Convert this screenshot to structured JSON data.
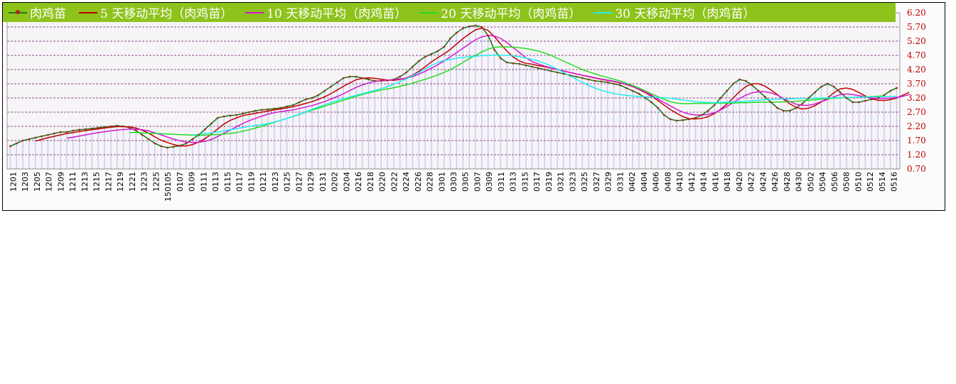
{
  "legend": [
    {
      "label": "肉鸡苗",
      "color": "#1a7a1a",
      "marker": "#b22222"
    },
    {
      "label": "5 天移动平均（肉鸡苗）",
      "color": "#c00000"
    },
    {
      "label": "10 天移动平均（肉鸡苗）",
      "color": "#d21ad2"
    },
    {
      "label": "20 天移动平均（肉鸡苗）",
      "color": "#22dd22"
    },
    {
      "label": "30 天移动平均（肉鸡苗）",
      "color": "#22eeee"
    }
  ],
  "chart_data": {
    "type": "line",
    "ylim": [
      0.7,
      6.2
    ],
    "y_ticks": [
      "6.20",
      "5.70",
      "5.20",
      "4.70",
      "4.20",
      "3.70",
      "3.20",
      "2.70",
      "2.20",
      "1.70",
      "1.20",
      "0.70"
    ],
    "x_tick_labels": [
      "1201",
      "1203",
      "1205",
      "1207",
      "1209",
      "1211",
      "1213",
      "1215",
      "1217",
      "1219",
      "1221",
      "1223",
      "1225",
      "150105",
      "0107",
      "0109",
      "0111",
      "0113",
      "0115",
      "0117",
      "0119",
      "0121",
      "0123",
      "0125",
      "0127",
      "0129",
      "0131",
      "0202",
      "0204",
      "0216",
      "0218",
      "0220",
      "0222",
      "0224",
      "0226",
      "0228",
      "0301",
      "0303",
      "0305",
      "0307",
      "0309",
      "0311",
      "0313",
      "0315",
      "0317",
      "0319",
      "0321",
      "0323",
      "0325",
      "0327",
      "0329",
      "0331",
      "0402",
      "0404",
      "0406",
      "0408",
      "0410",
      "0412",
      "0414",
      "0416",
      "0418",
      "0420",
      "0422",
      "0424",
      "0426",
      "0428",
      "0430",
      "0502",
      "0504",
      "0506",
      "0508",
      "0510",
      "0512",
      "0514",
      "0516"
    ],
    "series": [
      {
        "name": "肉鸡苗",
        "color": "#1a7a1a",
        "values": [
          1.5,
          1.6,
          1.7,
          1.75,
          1.8,
          1.85,
          1.9,
          1.95,
          2.0,
          2.0,
          2.05,
          2.08,
          2.1,
          2.12,
          2.15,
          2.18,
          2.2,
          2.22,
          2.2,
          2.15,
          2.05,
          1.9,
          1.75,
          1.6,
          1.5,
          1.45,
          1.48,
          1.52,
          1.6,
          1.75,
          1.9,
          2.1,
          2.3,
          2.5,
          2.55,
          2.58,
          2.6,
          2.65,
          2.7,
          2.75,
          2.78,
          2.8,
          2.82,
          2.85,
          2.9,
          2.95,
          3.05,
          3.15,
          3.2,
          3.3,
          3.45,
          3.6,
          3.75,
          3.9,
          3.95,
          3.95,
          3.9,
          3.85,
          3.8,
          3.8,
          3.82,
          3.85,
          3.95,
          4.1,
          4.3,
          4.5,
          4.65,
          4.75,
          4.85,
          5.0,
          5.3,
          5.5,
          5.65,
          5.72,
          5.75,
          5.7,
          5.4,
          4.9,
          4.6,
          4.45,
          4.42,
          4.4,
          4.35,
          4.3,
          4.25,
          4.2,
          4.15,
          4.1,
          4.05,
          4.0,
          3.95,
          3.9,
          3.85,
          3.8,
          3.78,
          3.75,
          3.7,
          3.65,
          3.55,
          3.45,
          3.35,
          3.2,
          3.05,
          2.85,
          2.6,
          2.45,
          2.4,
          2.42,
          2.45,
          2.5,
          2.6,
          2.75,
          2.95,
          3.2,
          3.45,
          3.7,
          3.85,
          3.8,
          3.65,
          3.45,
          3.25,
          3.05,
          2.85,
          2.75,
          2.75,
          2.85,
          3.0,
          3.2,
          3.4,
          3.6,
          3.7,
          3.6,
          3.4,
          3.2,
          3.05,
          3.05,
          3.1,
          3.15,
          3.2,
          3.3,
          3.45,
          3.55
        ]
      },
      {
        "name": "5 天移动平均（肉鸡苗）",
        "color": "#c00000",
        "values": [
          null,
          null,
          null,
          null,
          1.68,
          1.74,
          1.8,
          1.85,
          1.9,
          1.95,
          1.98,
          2.02,
          2.05,
          2.08,
          2.11,
          2.14,
          2.17,
          2.19,
          2.19,
          2.18,
          2.14,
          2.06,
          1.96,
          1.83,
          1.71,
          1.63,
          1.56,
          1.51,
          1.51,
          1.56,
          1.65,
          1.77,
          1.93,
          2.11,
          2.28,
          2.41,
          2.5,
          2.58,
          2.62,
          2.66,
          2.7,
          2.74,
          2.78,
          2.81,
          2.85,
          2.89,
          2.95,
          3.01,
          3.07,
          3.15,
          3.24,
          3.35,
          3.48,
          3.61,
          3.73,
          3.84,
          3.89,
          3.91,
          3.89,
          3.86,
          3.83,
          3.82,
          3.85,
          3.9,
          4.0,
          4.14,
          4.3,
          4.47,
          4.62,
          4.75,
          4.91,
          5.1,
          5.29,
          5.45,
          5.6,
          5.66,
          5.58,
          5.36,
          5.1,
          4.85,
          4.64,
          4.5,
          4.42,
          4.39,
          4.34,
          4.3,
          4.25,
          4.2,
          4.15,
          4.1,
          4.05,
          4.0,
          3.95,
          3.9,
          3.86,
          3.82,
          3.78,
          3.73,
          3.67,
          3.6,
          3.5,
          3.39,
          3.26,
          3.11,
          2.95,
          2.79,
          2.66,
          2.54,
          2.47,
          2.46,
          2.48,
          2.54,
          2.65,
          2.8,
          2.99,
          3.2,
          3.42,
          3.6,
          3.7,
          3.7,
          3.62,
          3.48,
          3.32,
          3.15,
          2.99,
          2.87,
          2.81,
          2.84,
          2.93,
          3.06,
          3.2,
          3.38,
          3.52,
          3.55,
          3.5,
          3.39,
          3.27,
          3.17,
          3.12,
          3.11,
          3.14,
          3.2,
          3.3,
          3.4
        ]
      },
      {
        "name": "10 天移动平均（肉鸡苗）",
        "color": "#d21ad2",
        "values": [
          null,
          null,
          null,
          null,
          null,
          null,
          null,
          null,
          null,
          1.78,
          1.82,
          1.86,
          1.9,
          1.94,
          1.98,
          2.01,
          2.04,
          2.07,
          2.09,
          2.1,
          2.1,
          2.08,
          2.04,
          1.97,
          1.9,
          1.82,
          1.75,
          1.69,
          1.65,
          1.63,
          1.64,
          1.67,
          1.74,
          1.84,
          1.96,
          2.07,
          2.19,
          2.3,
          2.4,
          2.48,
          2.56,
          2.63,
          2.68,
          2.72,
          2.75,
          2.78,
          2.83,
          2.88,
          2.93,
          3.0,
          3.07,
          3.16,
          3.25,
          3.35,
          3.46,
          3.57,
          3.66,
          3.73,
          3.78,
          3.81,
          3.83,
          3.84,
          3.87,
          3.9,
          3.95,
          4.04,
          4.14,
          4.25,
          4.37,
          4.5,
          4.65,
          4.8,
          4.95,
          5.1,
          5.25,
          5.35,
          5.4,
          5.38,
          5.3,
          5.15,
          4.97,
          4.8,
          4.62,
          4.48,
          4.4,
          4.32,
          4.26,
          4.2,
          4.15,
          4.1,
          4.05,
          4.0,
          3.96,
          3.91,
          3.87,
          3.83,
          3.79,
          3.74,
          3.68,
          3.61,
          3.52,
          3.41,
          3.3,
          3.17,
          3.04,
          2.92,
          2.8,
          2.7,
          2.63,
          2.6,
          2.6,
          2.62,
          2.68,
          2.78,
          2.9,
          3.04,
          3.18,
          3.3,
          3.38,
          3.42,
          3.42,
          3.38,
          3.3,
          3.18,
          3.07,
          2.98,
          2.94,
          2.94,
          2.99,
          3.07,
          3.15,
          3.24,
          3.32,
          3.34,
          3.32,
          3.28,
          3.24,
          3.2,
          3.18,
          3.18,
          3.19,
          3.22,
          3.26,
          3.32
        ]
      },
      {
        "name": "20 天移动平均（肉鸡苗）",
        "color": "#22dd22",
        "values": [
          null,
          null,
          null,
          null,
          null,
          null,
          null,
          null,
          null,
          null,
          null,
          null,
          null,
          null,
          null,
          null,
          null,
          null,
          null,
          1.98,
          1.98,
          1.97,
          1.96,
          1.95,
          1.94,
          1.93,
          1.92,
          1.91,
          1.9,
          1.89,
          1.88,
          1.89,
          1.9,
          1.91,
          1.93,
          1.95,
          1.98,
          2.03,
          2.08,
          2.14,
          2.2,
          2.27,
          2.34,
          2.41,
          2.48,
          2.55,
          2.62,
          2.7,
          2.77,
          2.84,
          2.91,
          2.98,
          3.05,
          3.12,
          3.19,
          3.26,
          3.32,
          3.38,
          3.43,
          3.48,
          3.52,
          3.56,
          3.61,
          3.66,
          3.72,
          3.79,
          3.86,
          3.93,
          4.01,
          4.1,
          4.2,
          4.32,
          4.45,
          4.58,
          4.7,
          4.82,
          4.92,
          4.98,
          5.0,
          5.0,
          4.99,
          4.97,
          4.94,
          4.9,
          4.85,
          4.78,
          4.7,
          4.6,
          4.5,
          4.4,
          4.3,
          4.2,
          4.12,
          4.05,
          3.98,
          3.92,
          3.86,
          3.8,
          3.72,
          3.64,
          3.55,
          3.45,
          3.35,
          3.25,
          3.15,
          3.07,
          3.02,
          3.0,
          3.0,
          3.01,
          3.01,
          3.01,
          3.02,
          3.02,
          3.02,
          3.02,
          3.03,
          3.03,
          3.04,
          3.05,
          3.05,
          3.05,
          3.06,
          3.06,
          3.07,
          3.08,
          3.1,
          3.12,
          3.14,
          3.16,
          3.18,
          3.19,
          3.2,
          3.21,
          3.22,
          3.23,
          3.24,
          3.25,
          3.26,
          3.28
        ]
      },
      {
        "name": "30 天移动平均（肉鸡苗）",
        "color": "#22eeee",
        "values": [
          null,
          null,
          null,
          null,
          null,
          null,
          null,
          null,
          null,
          null,
          null,
          null,
          null,
          null,
          null,
          null,
          null,
          null,
          null,
          null,
          null,
          null,
          null,
          null,
          null,
          null,
          null,
          null,
          null,
          1.9,
          1.92,
          1.94,
          1.97,
          2.0,
          2.04,
          2.08,
          2.12,
          2.16,
          2.2,
          2.23,
          2.26,
          2.3,
          2.35,
          2.41,
          2.48,
          2.55,
          2.63,
          2.71,
          2.8,
          2.88,
          2.96,
          3.04,
          3.11,
          3.17,
          3.23,
          3.29,
          3.35,
          3.41,
          3.47,
          3.53,
          3.6,
          3.68,
          3.77,
          3.87,
          3.98,
          4.1,
          4.22,
          4.35,
          4.45,
          4.52,
          4.56,
          4.6,
          4.63,
          4.65,
          4.67,
          4.69,
          4.7,
          4.71,
          4.71,
          4.7,
          4.68,
          4.65,
          4.61,
          4.56,
          4.5,
          4.42,
          4.33,
          4.22,
          4.1,
          3.98,
          3.86,
          3.75,
          3.64,
          3.55,
          3.47,
          3.41,
          3.36,
          3.32,
          3.29,
          3.27,
          3.25,
          3.24,
          3.23,
          3.22,
          3.21,
          3.19,
          3.16,
          3.13,
          3.1,
          3.07,
          3.05,
          3.04,
          3.03,
          3.04,
          3.05,
          3.06,
          3.07,
          3.08,
          3.1,
          3.12,
          3.14,
          3.15,
          3.16,
          3.17,
          3.17,
          3.18,
          3.18,
          3.19,
          3.19,
          3.2,
          3.2,
          3.21,
          3.21,
          3.22,
          3.22,
          3.23,
          3.23,
          3.24,
          3.24,
          3.25,
          3.25,
          3.26
        ]
      }
    ]
  }
}
